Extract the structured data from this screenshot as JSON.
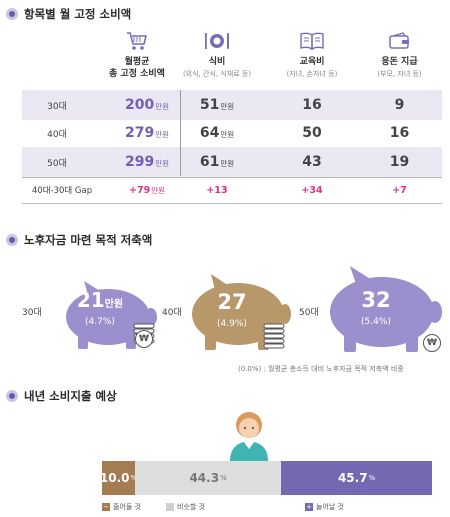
{
  "section1": {
    "title": "항목별 월 고정 소비액",
    "columns": [
      {
        "name": "월평균",
        "name2": "총 고정 소비액",
        "sub": "",
        "icon": "shopping-cart-icon"
      },
      {
        "name": "식비",
        "name2": "",
        "sub": "(외식, 간식, 식재료 등)",
        "icon": "fork-plate-knife-icon"
      },
      {
        "name": "교육비",
        "name2": "",
        "sub": "(자녀, 손자녀 등)",
        "icon": "open-book-icon"
      },
      {
        "name": "용돈 지급",
        "name2": "",
        "sub": "(부모, 자녀 등)",
        "icon": "wallet-icon"
      }
    ],
    "unit": "만원",
    "rows": [
      {
        "label": "30대",
        "total": "200",
        "food": "51",
        "edu": "16",
        "allowance": "9"
      },
      {
        "label": "40대",
        "total": "279",
        "food": "64",
        "edu": "50",
        "allowance": "16"
      },
      {
        "label": "50대",
        "total": "299",
        "food": "61",
        "edu": "43",
        "allowance": "19"
      }
    ],
    "gap": {
      "label": "40대-30대 Gap",
      "total": "+79",
      "food": "+13",
      "edu": "+34",
      "allowance": "+7"
    }
  },
  "section2": {
    "title": "노후자금 마련 목적 저축액",
    "pigs": [
      {
        "age": "30대",
        "value": "21",
        "unit": "만원",
        "pct": "(4.7%)",
        "color": "#9b8fce"
      },
      {
        "age": "40대",
        "value": "27",
        "unit": "",
        "pct": "(4.9%)",
        "color": "#b8976a"
      },
      {
        "age": "50대",
        "value": "32",
        "unit": "",
        "pct": "(5.4%)",
        "color": "#9b8fce"
      }
    ],
    "coin_symbol": "₩",
    "note": "(0.0%) : 월평균 총소득 대비 노후자금 목적  저축액 비중"
  },
  "section3": {
    "title": "내년 소비지출 예상",
    "segments": [
      {
        "value": "10.0",
        "pct": 10.0,
        "unit": "%",
        "color": "#a57b52",
        "text_color": "#ffffff"
      },
      {
        "value": "44.3",
        "pct": 44.3,
        "unit": "%",
        "color": "#dedede",
        "text_color": "#777777"
      },
      {
        "value": "45.7",
        "pct": 45.7,
        "unit": "%",
        "color": "#7568b2",
        "text_color": "#ffffff"
      }
    ],
    "legend": [
      {
        "label": "줄어들 것",
        "mark": "−",
        "color": "#a57b52"
      },
      {
        "label": "비슷할 것",
        "mark": "",
        "color": "#cfcfcf"
      },
      {
        "label": "늘어날 것",
        "mark": "+",
        "color": "#7568b2"
      }
    ]
  }
}
